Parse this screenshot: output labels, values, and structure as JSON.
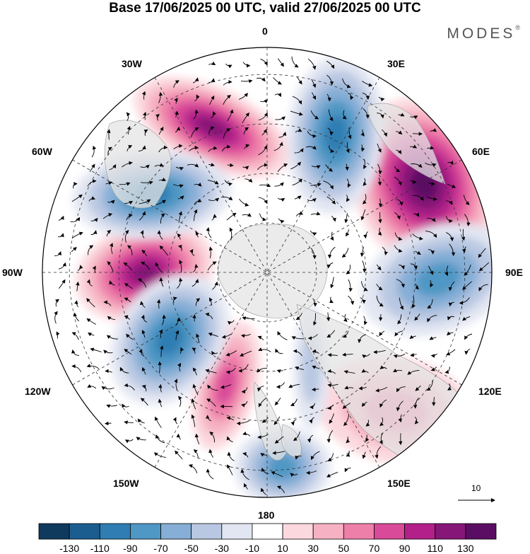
{
  "title": "Base 17/06/2025 00 UTC, valid 27/06/2025 00 UTC",
  "brand": "MODES",
  "brand_mark": "®",
  "longitude_labels": {
    "l0": "0",
    "l30e": "30E",
    "l60e": "60E",
    "l90e": "90E",
    "l120e": "120E",
    "l150e": "150E",
    "l180": "180",
    "l150w": "150W",
    "l120w": "120W",
    "l90w": "90W",
    "l60w": "60W",
    "l30w": "30W"
  },
  "vector_reference": "10",
  "colorbar": {
    "ticks": [
      "-130",
      "-110",
      "-90",
      "-70",
      "-50",
      "-30",
      "-10",
      "10",
      "30",
      "50",
      "70",
      "90",
      "110",
      "130"
    ],
    "colors": [
      "#0f3a5e",
      "#1c5d8f",
      "#2f7db3",
      "#4f97c4",
      "#86aed6",
      "#b9c8e2",
      "#e2e6f2",
      "#ffffff",
      "#fbd8de",
      "#f6b2c2",
      "#ee7fa9",
      "#d94a98",
      "#b3208a",
      "#861677",
      "#5a0e63"
    ]
  },
  "colors": {
    "land": "#e6e6e6",
    "coast": "#999999",
    "grid": "#333333",
    "arrow": "#000000"
  }
}
